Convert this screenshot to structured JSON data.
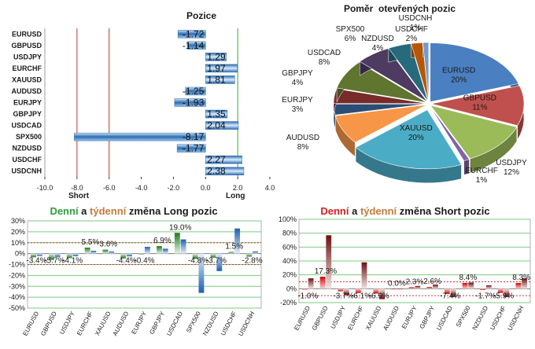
{
  "colors": {
    "long_accent": "#2e9e3a",
    "short_accent": "#d62020",
    "weekly_accent": "#c47a3a",
    "positive_bar": "#4a86c8",
    "threshold_red": "#c0392b",
    "threshold_green": "#3aa83a",
    "grid": "#7fc97f"
  },
  "chart_data": [
    {
      "id": "positions",
      "type": "bar",
      "orientation": "horizontal",
      "title": "Pozice",
      "categories": [
        "EURUSD",
        "GBPUSD",
        "USDJPY",
        "EURCHF",
        "XAUUSD",
        "AUDUSD",
        "EURJPY",
        "GBPJPY",
        "USDCAD",
        "SPX500",
        "NZDUSD",
        "USDCHF",
        "USDCNH"
      ],
      "series": [
        {
          "values": [
            -1.72,
            -1.14,
            1.29,
            1.97,
            1.81,
            -1.25,
            -1.93,
            1.35,
            2.04,
            -8.17,
            -1.77,
            2.27,
            2.38
          ]
        }
      ],
      "xlim": [
        -10,
        4
      ],
      "x_ticks": [
        "-10.0",
        "-8.0",
        "-6.0",
        "-4.0",
        "-2.0",
        "0.0",
        "2.0",
        "4.0"
      ],
      "threshold_labels": {
        "short": "Short",
        "long": "Long"
      },
      "thresholds": {
        "short": -8,
        "long": 2
      }
    },
    {
      "id": "open_positions_ratio",
      "type": "pie",
      "title": "Poměr  otevřených pozic",
      "slices": [
        {
          "label": "EURUSD",
          "value": 20,
          "text": "20%",
          "color": "#4a7fc1"
        },
        {
          "label": "GBPUSD",
          "value": 11,
          "text": "11%",
          "color": "#c0504d"
        },
        {
          "label": "USDJPY",
          "value": 12,
          "text": "12%",
          "color": "#9bbb59"
        },
        {
          "label": "EURCHF",
          "value": 1,
          "text": "1%",
          "color": "#8064a2"
        },
        {
          "label": "XAUUSD",
          "value": 20,
          "text": "20%",
          "color": "#4bacc6"
        },
        {
          "label": "AUDUSD",
          "value": 8,
          "text": "8%",
          "color": "#f79646"
        },
        {
          "label": "EURJPY",
          "value": 3,
          "text": "3%",
          "color": "#2c4d75"
        },
        {
          "label": "GBPJPY",
          "value": 4,
          "text": "4%",
          "color": "#772c2a"
        },
        {
          "label": "USDCAD",
          "value": 8,
          "text": "8%",
          "color": "#5f7530"
        },
        {
          "label": "SPX500",
          "value": 6,
          "text": "6%",
          "color": "#4d3b62"
        },
        {
          "label": "NZDUSD",
          "value": 4,
          "text": "4%",
          "color": "#276a7c"
        },
        {
          "label": "USDCHF",
          "value": 2,
          "text": "2%",
          "color": "#b65708"
        },
        {
          "label": "USDCNH",
          "value": 1,
          "text": "1%",
          "color": "#729aca"
        }
      ]
    },
    {
      "id": "long_changes",
      "type": "bar",
      "title_parts": [
        "Denní",
        " a ",
        "týdenní",
        " změna Long pozic"
      ],
      "categories": [
        "EURUSD",
        "GBPUSD",
        "USDJPY",
        "EURCHF",
        "XAUUSD",
        "AUDUSD",
        "EURJPY",
        "GBPJPY",
        "USDCAD",
        "SPX500",
        "NZDUSD",
        "USDCHF",
        "USDCNH"
      ],
      "series": [
        {
          "name": "Denní",
          "values": [
            -3.4,
            -5.7,
            -4.1,
            5.5,
            3.6,
            -4.4,
            -0.4,
            6.9,
            19.0,
            -4.8,
            -3.7,
            1.5,
            -2.8
          ]
        },
        {
          "name": "Týdenní",
          "values": [
            -2.2,
            -3.0,
            -2.4,
            2.6,
            2.0,
            -2.5,
            6.2,
            4.5,
            13.0,
            -36.0,
            -16.0,
            23.0,
            2.0
          ]
        }
      ],
      "value_labels": [
        "-3.4%",
        "-5.7%",
        "-4.1%",
        "5.5%",
        "3.6%",
        "-4.4%",
        "-0.4%",
        "6.9%",
        "19.0%",
        "-4.8%",
        "-3.7%",
        "1.5%",
        "-2.8%"
      ],
      "ylim": [
        -50,
        30
      ],
      "y_ticks": [
        "30%",
        "20%",
        "10%",
        "0%",
        "-10%",
        "-20%",
        "-30%",
        "-40%",
        "-50%"
      ],
      "threshold": 10
    },
    {
      "id": "short_changes",
      "type": "bar",
      "title_parts": [
        "Denní",
        " a ",
        "týdenní",
        " změna Short pozic"
      ],
      "categories": [
        "EURUSD",
        "GBPUSD",
        "USDJPY",
        "EURCHF",
        "XAUUSD",
        "AUDUSD",
        "EURJPY",
        "GBPJPY",
        "USDCAD",
        "SPX500",
        "NZDUSD",
        "USDCHF",
        "USDCNH"
      ],
      "series": [
        {
          "name": "Denní",
          "values": [
            -1.0,
            17.3,
            -3.7,
            -6.1,
            -6.9,
            0.0,
            2.3,
            2.6,
            -7.4,
            8.4,
            -1.7,
            -5.9,
            8.3
          ]
        },
        {
          "name": "Týdenní",
          "values": [
            15,
            77,
            -9,
            38,
            -15,
            0,
            4,
            6,
            -12,
            9,
            5,
            -12,
            15
          ]
        }
      ],
      "value_labels": [
        "-1.0%",
        "17.3%",
        "-3.7%",
        "-6.1%",
        "-6.9%",
        "0.0%",
        "2.3%",
        "2.6%",
        "-7.4%",
        "8.4%",
        "-1.7%",
        "-5.9%",
        "8.3%"
      ],
      "ylim": [
        -20,
        100
      ],
      "y_ticks": [
        "100%",
        "80%",
        "60%",
        "40%",
        "20%",
        "0%",
        "-20%"
      ],
      "threshold": 10
    }
  ]
}
